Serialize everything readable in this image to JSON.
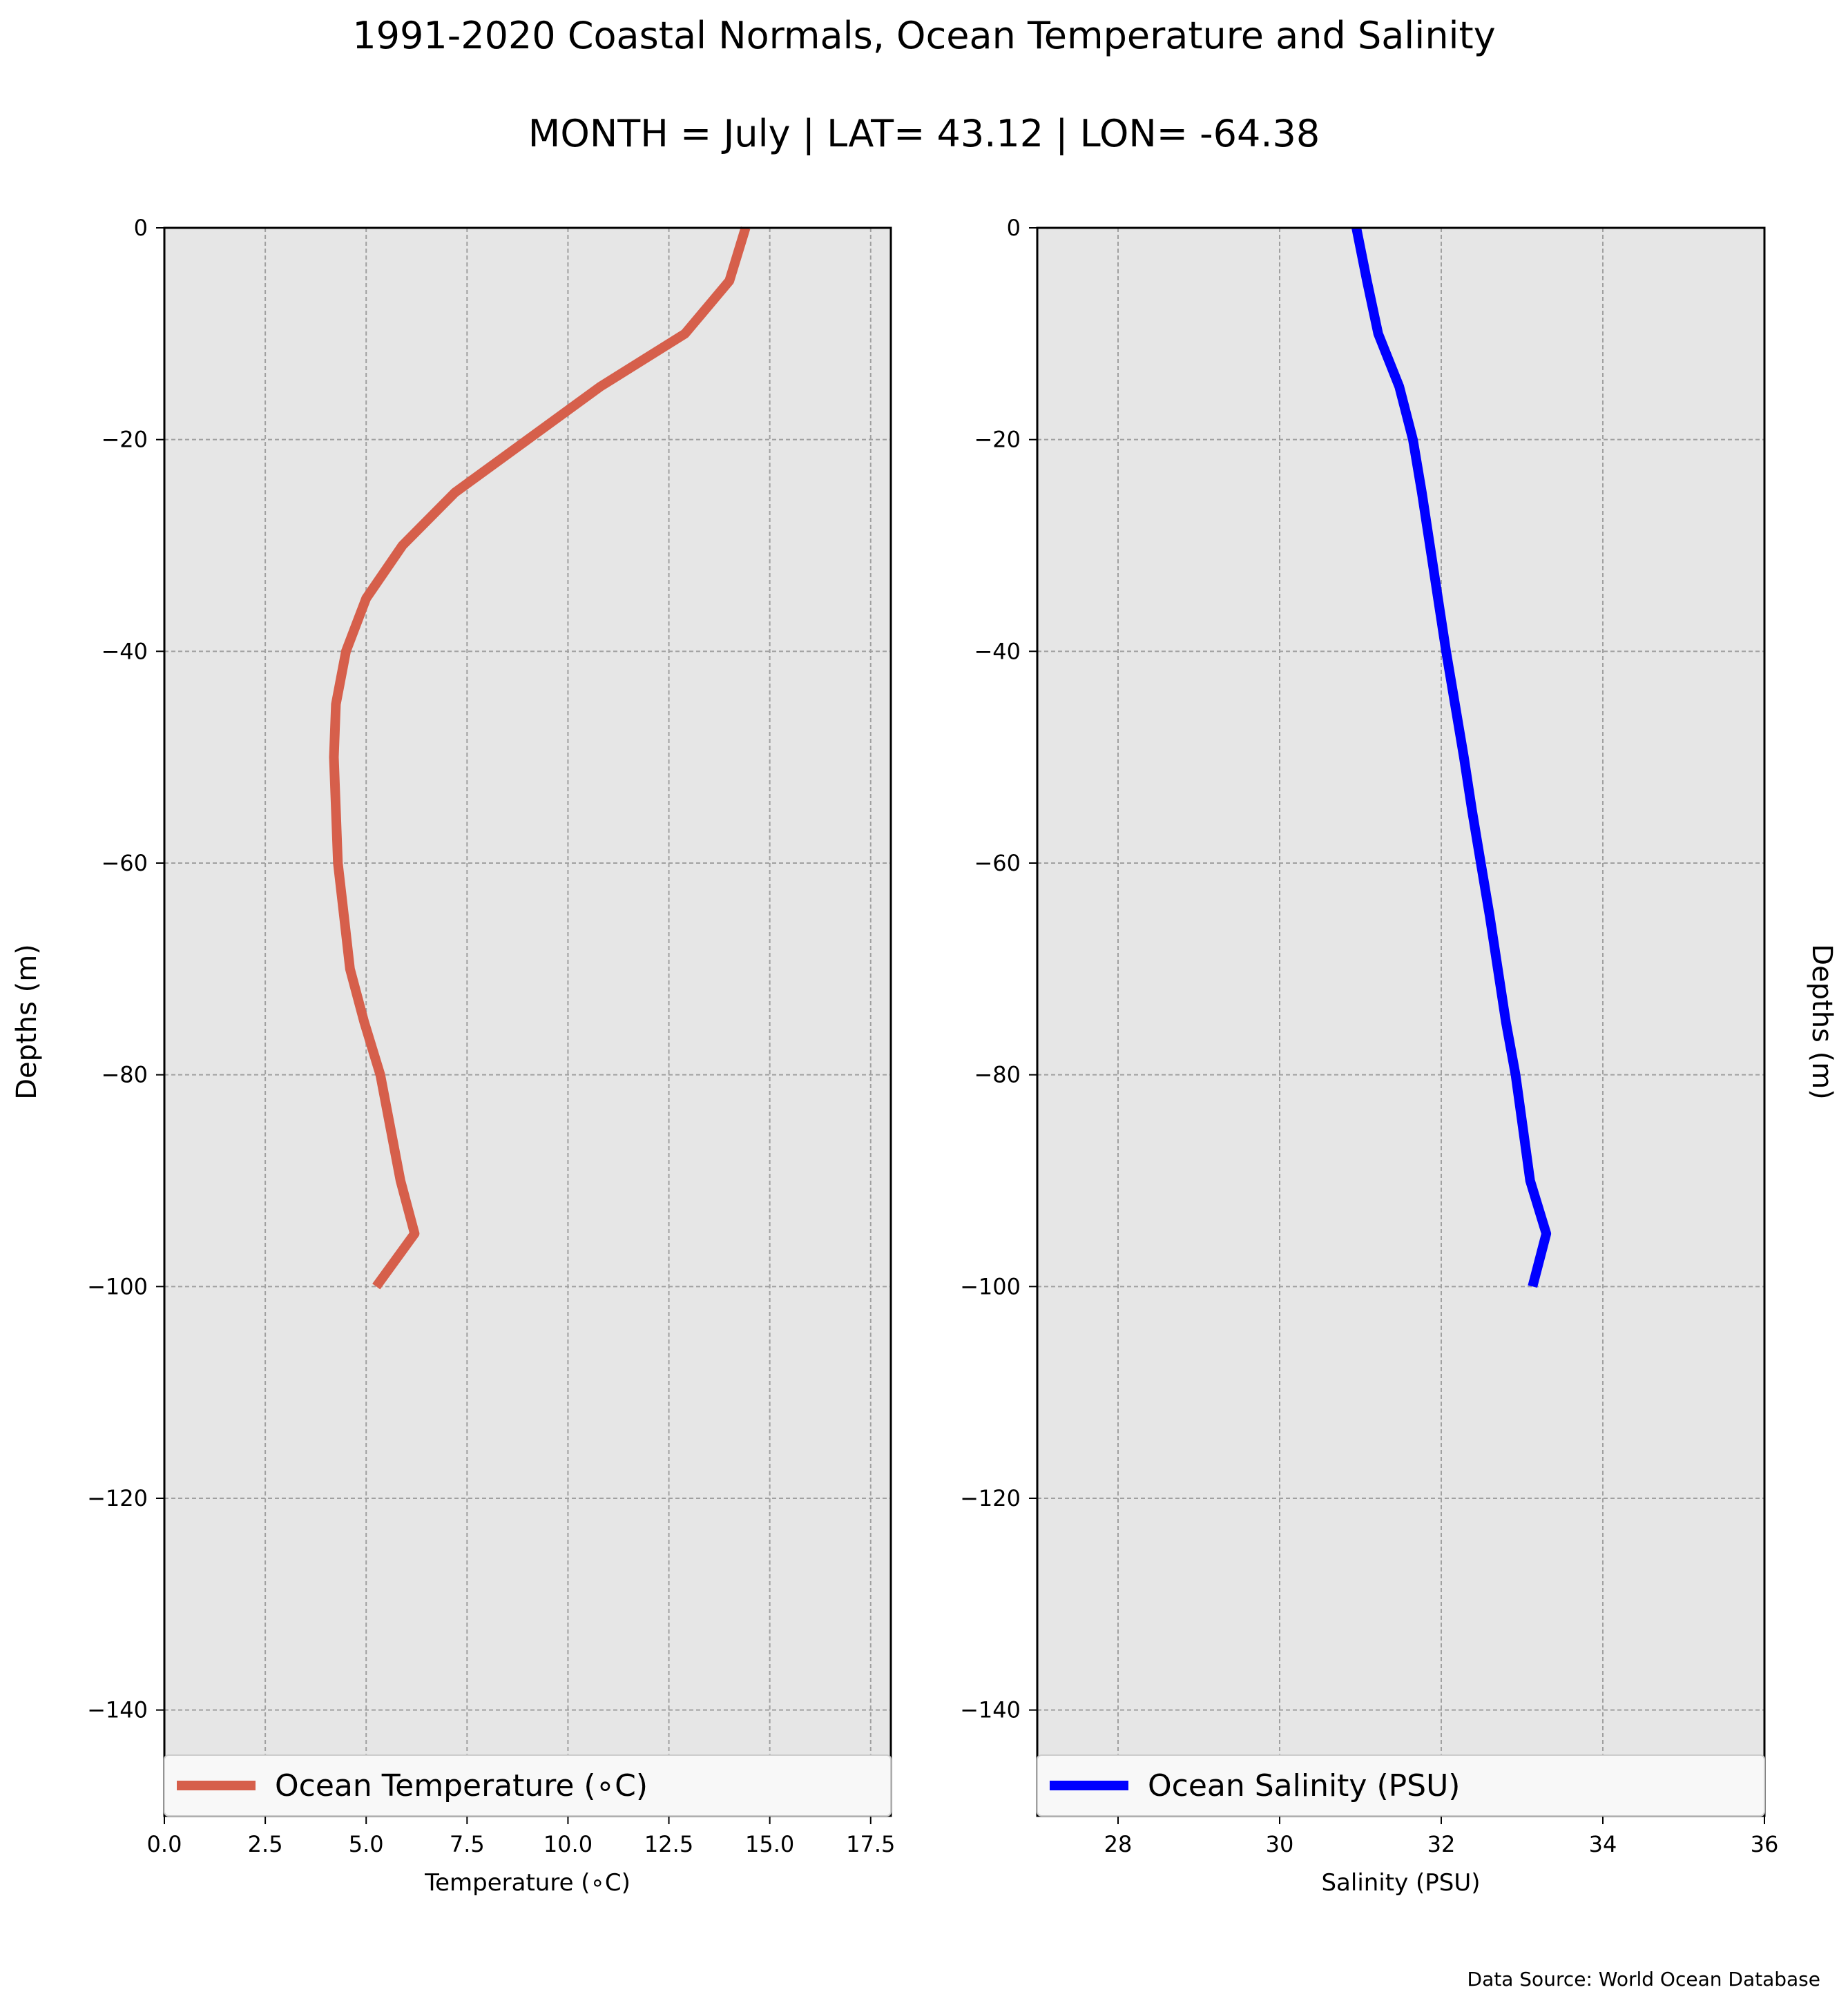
{
  "title": "1991-2020 Coastal Normals, Ocean Temperature and Salinity",
  "subtitle": "MONTH = July | LAT= 43.12 | LON= -64.38",
  "source_note": "Data Source: World Ocean Database",
  "chart_data": [
    {
      "type": "line",
      "xlabel": "Temperature (∘C)",
      "ylabel": "Depths (m)",
      "xlim": [
        0,
        18
      ],
      "ylim": [
        -150,
        0
      ],
      "xticks": [
        0,
        2.5,
        5,
        7.5,
        10,
        12.5,
        15,
        17.5
      ],
      "xtick_labels": [
        "0.0",
        "2.5",
        "5.0",
        "7.5",
        "10.0",
        "12.5",
        "15.0",
        "17.5"
      ],
      "yticks": [
        0,
        -20,
        -40,
        -60,
        -80,
        -100,
        -120,
        -140
      ],
      "ytick_labels": [
        "0",
        "−20",
        "−40",
        "−60",
        "−80",
        "−100",
        "−120",
        "−140"
      ],
      "grid": true,
      "legend_position": "bottom",
      "background": "#e6e6e6",
      "series": [
        {
          "name": "Ocean Temperature (∘C)",
          "color": "#d65f4b",
          "x": [
            14.4,
            14.0,
            12.9,
            10.8,
            9.0,
            7.2,
            5.9,
            5.0,
            4.5,
            4.25,
            4.2,
            4.25,
            4.3,
            4.45,
            4.6,
            4.95,
            5.35,
            5.6,
            5.85,
            6.2,
            5.25
          ],
          "y": [
            0,
            -5,
            -10,
            -15,
            -20,
            -25,
            -30,
            -35,
            -40,
            -45,
            -50,
            -55,
            -60,
            -65,
            -70,
            -75,
            -80,
            -85,
            -90,
            -95,
            -100
          ]
        }
      ]
    },
    {
      "type": "line",
      "xlabel": "Salinity (PSU)",
      "ylabel": "Depths (m)",
      "xlim": [
        27,
        36
      ],
      "ylim": [
        -150,
        0
      ],
      "xticks": [
        28,
        30,
        32,
        34,
        36
      ],
      "xtick_labels": [
        "28",
        "30",
        "32",
        "34",
        "36"
      ],
      "yticks": [
        0,
        -20,
        -40,
        -60,
        -80,
        -100,
        -120,
        -140
      ],
      "ytick_labels": [
        "0",
        "−20",
        "−40",
        "−60",
        "−80",
        "−100",
        "−120",
        "−140"
      ],
      "grid": true,
      "legend_position": "bottom",
      "background": "#e6e6e6",
      "series": [
        {
          "name": "Ocean Salinity (PSU)",
          "color": "#0000ff",
          "x": [
            30.95,
            31.08,
            31.22,
            31.48,
            31.65,
            31.76,
            31.86,
            31.96,
            32.06,
            32.17,
            32.28,
            32.38,
            32.49,
            32.6,
            32.7,
            32.8,
            32.92,
            33.01,
            33.1,
            33.3,
            33.13
          ],
          "y": [
            0,
            -5,
            -10,
            -15,
            -20,
            -25,
            -30,
            -35,
            -40,
            -45,
            -50,
            -55,
            -60,
            -65,
            -70,
            -75,
            -80,
            -85,
            -90,
            -95,
            -100
          ]
        }
      ]
    }
  ]
}
